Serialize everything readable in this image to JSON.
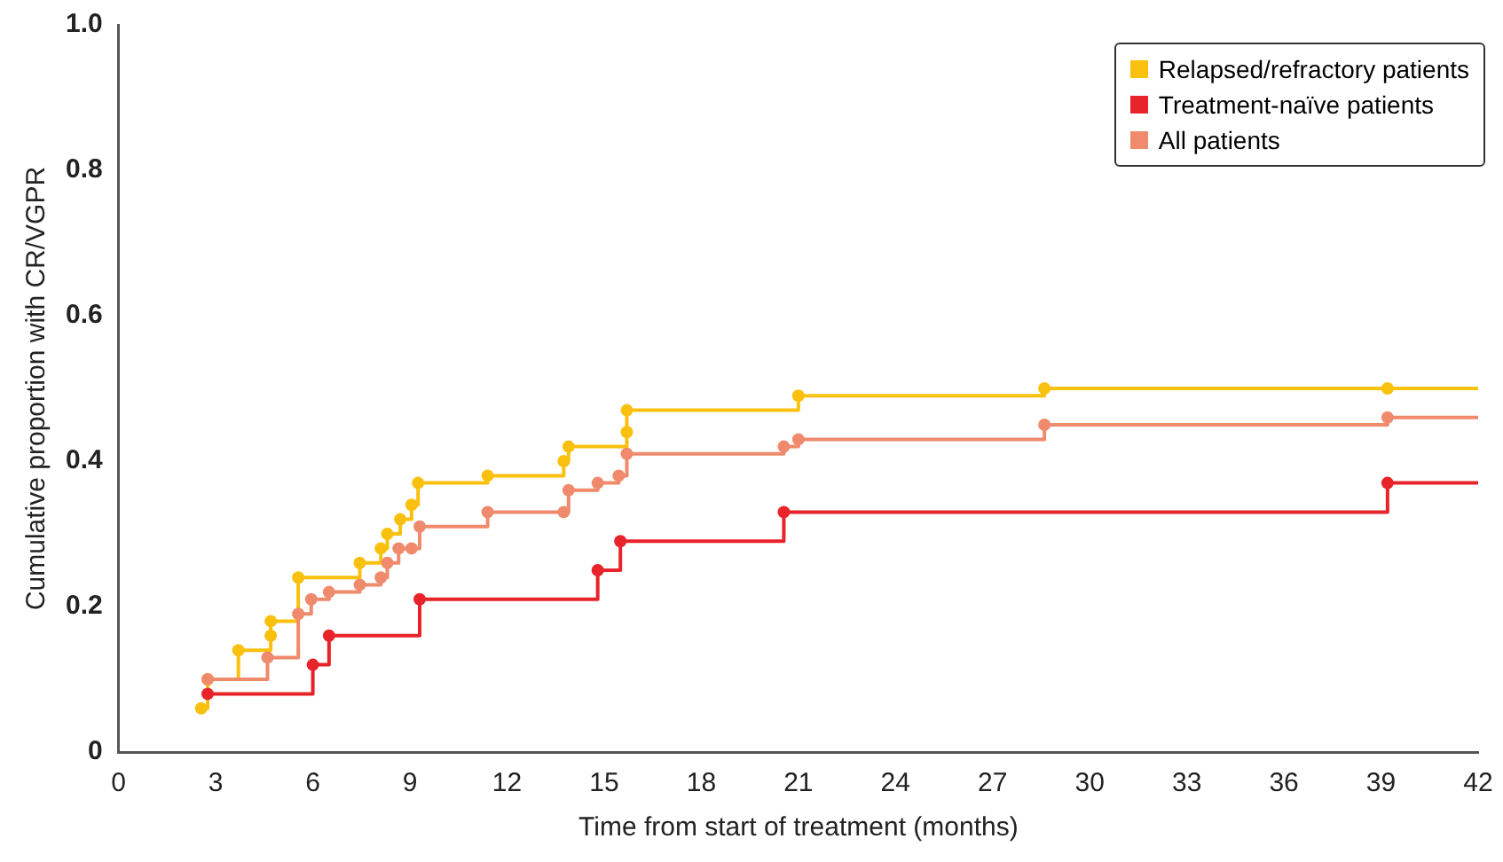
{
  "chart_data": {
    "type": "step",
    "xlabel": "Time from start of treatment (months)",
    "ylabel": "Cumulative proportion with CR/VGPR",
    "xlim": [
      0,
      42
    ],
    "xticks": [
      0,
      3,
      6,
      9,
      12,
      15,
      18,
      21,
      24,
      27,
      30,
      33,
      36,
      39,
      42
    ],
    "ylim": [
      0,
      1
    ],
    "yticks": [
      0,
      0.2,
      0.4,
      0.6,
      0.8,
      {
        "value": 1,
        "label": "1.0"
      }
    ],
    "grid": false,
    "legend": "top right",
    "marker": "circle",
    "line_style": "solid",
    "series": [
      {
        "name": "Relapsed/refractory patients",
        "color": "#f9c10e",
        "x": [
          2.55,
          2.75,
          3.7,
          4.7,
          4.7,
          5.55,
          7.45,
          8.1,
          8.3,
          8.7,
          9.05,
          9.25,
          11.4,
          13.75,
          13.9,
          15.7,
          15.7,
          21.0,
          28.6,
          39.2,
          42
        ],
        "values": [
          0.06,
          0.1,
          0.14,
          0.16,
          0.18,
          0.24,
          0.26,
          0.28,
          0.3,
          0.32,
          0.34,
          0.37,
          0.38,
          0.4,
          0.42,
          0.44,
          0.47,
          0.49,
          0.5,
          0.5,
          0.5
        ]
      },
      {
        "name": "Treatment-naïve patients",
        "color": "#e8232a",
        "x": [
          2.75,
          6.0,
          6.5,
          9.3,
          14.8,
          15.5,
          20.55,
          39.2,
          42
        ],
        "values": [
          0.08,
          0.12,
          0.16,
          0.21,
          0.25,
          0.29,
          0.33,
          0.37,
          0.37
        ]
      },
      {
        "name": "All patients",
        "color": "#f08a6c",
        "x": [
          2.75,
          4.6,
          5.55,
          5.95,
          6.5,
          7.45,
          8.1,
          8.3,
          8.65,
          9.05,
          9.3,
          11.4,
          13.75,
          13.9,
          14.8,
          15.45,
          15.7,
          20.55,
          21.0,
          28.6,
          39.2,
          42
        ],
        "values": [
          0.1,
          0.13,
          0.19,
          0.21,
          0.22,
          0.23,
          0.24,
          0.26,
          0.28,
          0.28,
          0.31,
          0.33,
          0.33,
          0.36,
          0.37,
          0.38,
          0.41,
          0.42,
          0.43,
          0.45,
          0.46,
          0.46
        ]
      }
    ]
  }
}
